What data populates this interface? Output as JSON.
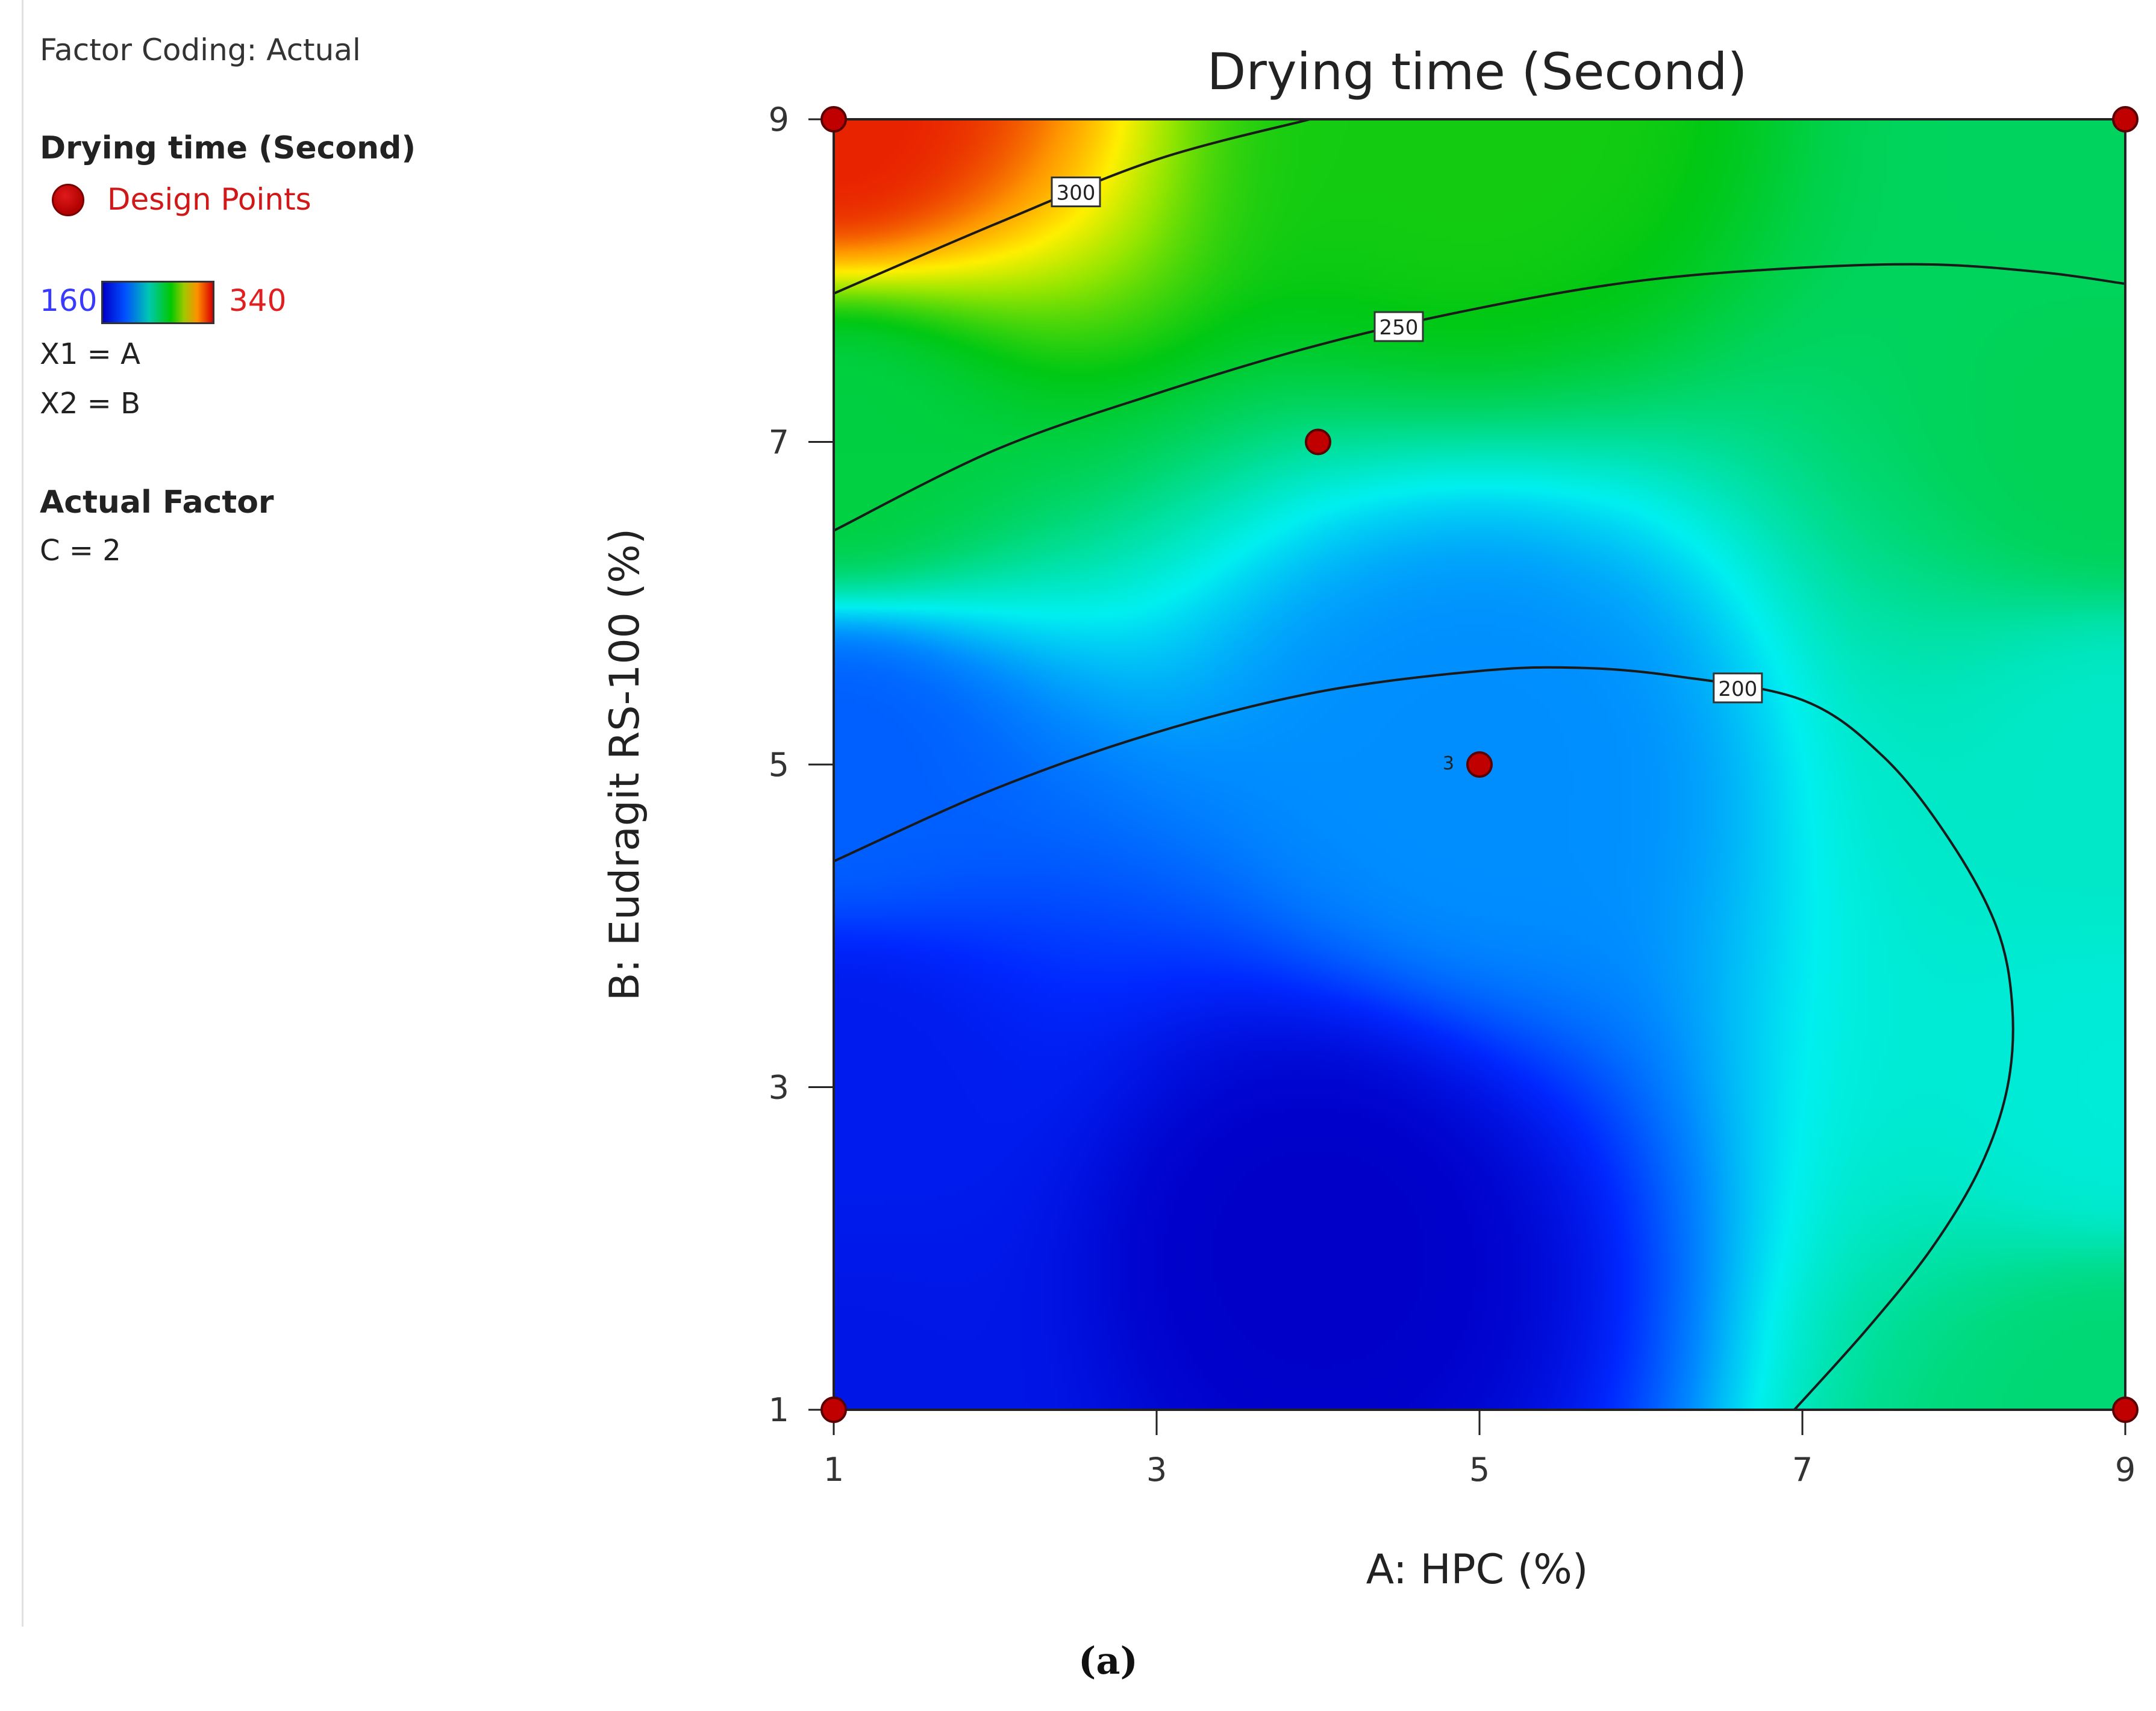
{
  "legend": {
    "factor_coding": "Factor Coding: Actual",
    "response_title": "Drying time  (Second)",
    "design_points_label": "Design Points",
    "scale_min": "160",
    "scale_max": "340",
    "x1_mapping": "X1 = A",
    "x2_mapping": "X2 = B",
    "actual_factor_heading": "Actual Factor",
    "actual_factor_value": "C = 2"
  },
  "caption": "(a)",
  "colors": {
    "design_point": "#c00000",
    "contour_line": "#1a1a1a",
    "low": "#0000c8",
    "high": "#d80000"
  },
  "chart_data": {
    "type": "contour",
    "title": "Drying time  (Second)",
    "xlabel": "A: HPC (%)",
    "ylabel": "B: Eudragit RS-100 (%)",
    "xlim": [
      1,
      9
    ],
    "ylim": [
      1,
      9
    ],
    "xticks": [
      1,
      3,
      5,
      7,
      9
    ],
    "yticks": [
      1,
      3,
      5,
      7,
      9
    ],
    "color_scale": {
      "min": 160,
      "max": 340
    },
    "contour_levels": [
      200,
      250,
      300
    ],
    "contours": [
      {
        "level": 200,
        "label": "200",
        "points": [
          [
            1,
            4.4
          ],
          [
            2,
            4.85
          ],
          [
            3,
            5.2
          ],
          [
            4,
            5.45
          ],
          [
            5,
            5.58
          ],
          [
            5.6,
            5.6
          ],
          [
            6.2,
            5.55
          ],
          [
            7,
            5.4
          ],
          [
            7.5,
            5.05
          ],
          [
            7.9,
            4.55
          ],
          [
            8.2,
            4.0
          ],
          [
            8.3,
            3.5
          ],
          [
            8.27,
            3.0
          ],
          [
            8.1,
            2.5
          ],
          [
            7.8,
            2.0
          ],
          [
            7.4,
            1.5
          ],
          [
            6.95,
            1.0
          ]
        ]
      },
      {
        "level": 250,
        "label": "250",
        "points": [
          [
            1,
            6.45
          ],
          [
            2,
            6.95
          ],
          [
            3,
            7.3
          ],
          [
            4,
            7.6
          ],
          [
            5,
            7.83
          ],
          [
            6,
            8.0
          ],
          [
            7,
            8.08
          ],
          [
            7.8,
            8.1
          ],
          [
            8.5,
            8.05
          ],
          [
            9,
            7.98
          ]
        ]
      },
      {
        "level": 300,
        "label": "300",
        "points": [
          [
            1,
            7.92
          ],
          [
            2,
            8.35
          ],
          [
            3,
            8.75
          ],
          [
            3.95,
            9.0
          ]
        ]
      }
    ],
    "design_points": [
      {
        "x": 1,
        "y": 9,
        "label": ""
      },
      {
        "x": 9,
        "y": 9,
        "label": ""
      },
      {
        "x": 4,
        "y": 7,
        "label": ""
      },
      {
        "x": 5,
        "y": 5,
        "label": "3"
      },
      {
        "x": 1,
        "y": 1,
        "label": ""
      },
      {
        "x": 9,
        "y": 1,
        "label": ""
      }
    ],
    "surface_anchors": [
      {
        "x": 1,
        "y": 9,
        "value": 335
      },
      {
        "x": 5,
        "y": 9,
        "value": 262
      },
      {
        "x": 9,
        "y": 9,
        "value": 244
      },
      {
        "x": 1,
        "y": 7,
        "value": 250
      },
      {
        "x": 9,
        "y": 7,
        "value": 246
      },
      {
        "x": 5,
        "y": 5,
        "value": 200
      },
      {
        "x": 1,
        "y": 5,
        "value": 190
      },
      {
        "x": 9,
        "y": 5,
        "value": 225
      },
      {
        "x": 1,
        "y": 3,
        "value": 172
      },
      {
        "x": 4,
        "y": 2,
        "value": 160
      },
      {
        "x": 9,
        "y": 3,
        "value": 222
      },
      {
        "x": 1,
        "y": 1,
        "value": 170
      },
      {
        "x": 9,
        "y": 1,
        "value": 240
      }
    ]
  }
}
